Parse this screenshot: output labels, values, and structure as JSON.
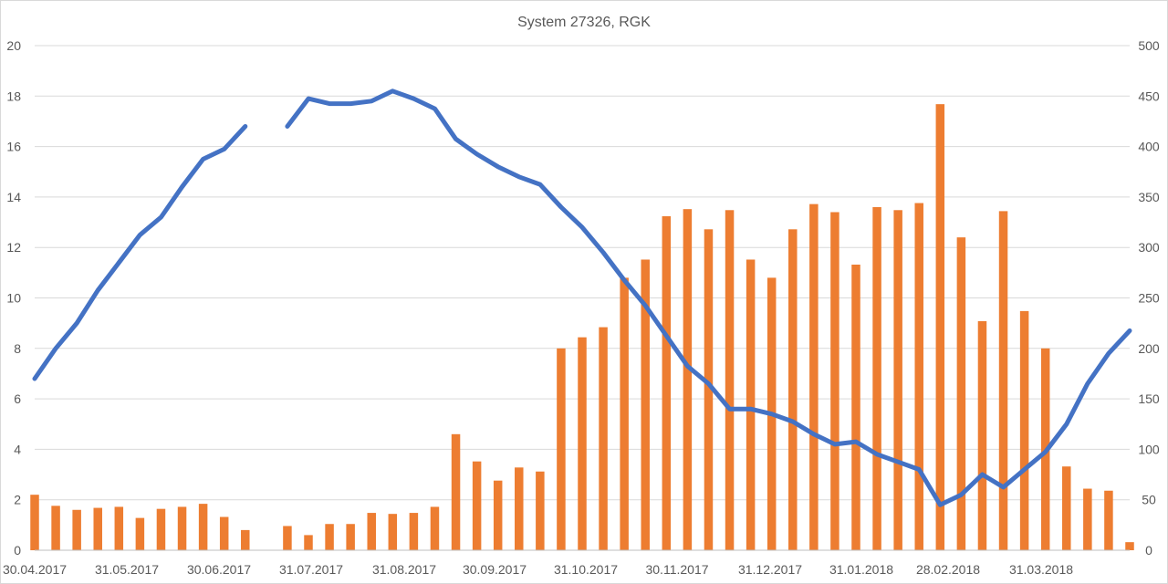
{
  "chart_data": {
    "type": "bar+line",
    "title": "System 27326, RGK",
    "colors": {
      "bars": "#ED7D31",
      "line": "#4472C4",
      "grid": "#D9D9D9",
      "text": "#595959"
    },
    "x_tick_labels": [
      "30.04.2017",
      "31.05.2017",
      "30.06.2017",
      "31.07.2017",
      "31.08.2017",
      "30.09.2017",
      "31.10.2017",
      "30.11.2017",
      "31.12.2017",
      "31.01.2018",
      "28.02.2018",
      "31.03.2018"
    ],
    "y_left": {
      "min": 0,
      "max": 20,
      "step": 2,
      "ticks": [
        "0",
        "2",
        "4",
        "6",
        "8",
        "10",
        "12",
        "14",
        "16",
        "18",
        "20"
      ]
    },
    "y_right": {
      "min": 0,
      "max": 500,
      "step": 50,
      "ticks": [
        "0",
        "50",
        "100",
        "150",
        "200",
        "250",
        "300",
        "350",
        "400",
        "450",
        "500"
      ]
    },
    "grid": true,
    "series": [
      {
        "type": "bar",
        "axis": "right",
        "values": [
          55,
          44,
          40,
          42,
          43,
          32,
          41,
          43,
          46,
          33,
          20,
          null,
          24,
          15,
          26,
          26,
          37,
          36,
          37,
          43,
          115,
          88,
          69,
          82,
          78,
          200,
          211,
          221,
          270,
          288,
          331,
          338,
          318,
          337,
          288,
          270,
          318,
          343,
          335,
          283,
          340,
          337,
          344,
          442,
          310,
          227,
          336,
          237,
          200,
          83,
          61,
          59,
          8
        ]
      },
      {
        "type": "line",
        "axis": "left",
        "values": [
          6.8,
          8.0,
          9.0,
          10.3,
          11.4,
          12.5,
          13.2,
          14.4,
          15.5,
          15.9,
          16.8,
          null,
          16.8,
          17.9,
          17.7,
          17.7,
          17.8,
          18.2,
          17.9,
          17.5,
          16.3,
          15.7,
          15.2,
          14.8,
          14.5,
          13.6,
          12.8,
          11.8,
          10.7,
          9.7,
          8.5,
          7.3,
          6.6,
          5.6,
          5.6,
          5.4,
          5.1,
          4.6,
          4.2,
          4.3,
          3.8,
          3.5,
          3.2,
          1.8,
          2.2,
          3.0,
          2.5,
          3.2,
          3.9,
          5.0,
          6.6,
          7.8,
          8.7
        ]
      }
    ]
  }
}
